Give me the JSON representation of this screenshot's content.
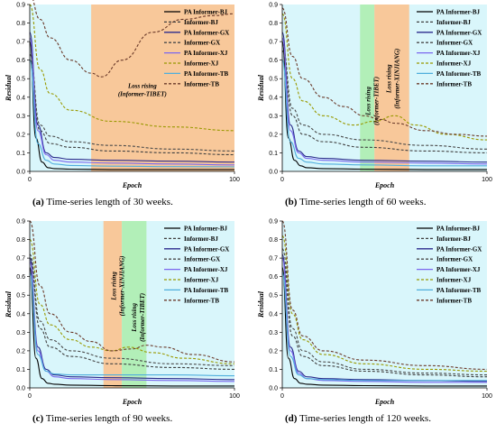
{
  "colors": {
    "PA Informer-BJ": "#000000",
    "Informer-BJ": "#404040",
    "PA Informer-GX": "#2b2b8c",
    "Informer-GX": "#4a4a4a",
    "PA Informer-XJ": "#7b68ee",
    "Informer-XJ": "#999900",
    "PA Informer-TB": "#4faedc",
    "Informer-TB": "#6b3a2a",
    "bg_cyan": "#d9f6fb",
    "band_orange": "#f8c89a",
    "band_green": "#b2efb8"
  },
  "chart_data": [
    {
      "type": "line",
      "caption_letter": "(a)",
      "caption_text": "Time-series length of 30 weeks.",
      "xlabel": "Epoch",
      "ylabel": "Residual",
      "xlim": [
        0,
        100
      ],
      "ylim": [
        0,
        0.9
      ],
      "xticks": [
        0,
        100
      ],
      "yticks": [
        0.0,
        0.1,
        0.2,
        0.3,
        0.4,
        0.5,
        0.6,
        0.7,
        0.8,
        0.9
      ],
      "legend_placement": "right",
      "bands": [
        {
          "x0": 30,
          "x1": 100,
          "color": "orange"
        }
      ],
      "annotations": [
        {
          "text": "Loss rising",
          "text2": "(Informer-TIBET)",
          "x": 55,
          "y": 0.45,
          "rotate": false
        }
      ],
      "series": [
        {
          "name": "PA Informer-BJ",
          "dashed": false,
          "x": [
            0,
            3,
            6,
            9,
            12,
            20,
            40,
            70,
            100
          ],
          "y": [
            0.7,
            0.18,
            0.05,
            0.02,
            0.015,
            0.012,
            0.01,
            0.01,
            0.01
          ]
        },
        {
          "name": "Informer-BJ",
          "dashed": true,
          "x": [
            0,
            5,
            10,
            20,
            40,
            70,
            100
          ],
          "y": [
            0.6,
            0.22,
            0.15,
            0.13,
            0.11,
            0.1,
            0.09
          ]
        },
        {
          "name": "PA Informer-GX",
          "dashed": false,
          "x": [
            0,
            4,
            8,
            12,
            20,
            40,
            70,
            100
          ],
          "y": [
            0.75,
            0.25,
            0.1,
            0.075,
            0.065,
            0.06,
            0.055,
            0.05
          ]
        },
        {
          "name": "Informer-GX",
          "dashed": true,
          "x": [
            0,
            5,
            10,
            20,
            40,
            70,
            100
          ],
          "y": [
            0.63,
            0.25,
            0.19,
            0.16,
            0.14,
            0.12,
            0.11
          ]
        },
        {
          "name": "PA Informer-XJ",
          "dashed": false,
          "x": [
            0,
            4,
            8,
            12,
            20,
            40,
            70,
            100
          ],
          "y": [
            0.72,
            0.22,
            0.09,
            0.06,
            0.05,
            0.045,
            0.04,
            0.035
          ]
        },
        {
          "name": "Informer-XJ",
          "dashed": true,
          "x": [
            0,
            5,
            10,
            20,
            40,
            70,
            100
          ],
          "y": [
            0.9,
            0.55,
            0.42,
            0.33,
            0.27,
            0.24,
            0.22
          ]
        },
        {
          "name": "PA Informer-TB",
          "dashed": false,
          "x": [
            0,
            4,
            8,
            12,
            20,
            40,
            70,
            100
          ],
          "y": [
            0.6,
            0.15,
            0.06,
            0.04,
            0.032,
            0.028,
            0.026,
            0.025
          ]
        },
        {
          "name": "Informer-TB",
          "dashed": true,
          "x": [
            0,
            5,
            10,
            20,
            30,
            35,
            45,
            60,
            75,
            90,
            100
          ],
          "y": [
            0.95,
            0.82,
            0.72,
            0.6,
            0.53,
            0.51,
            0.6,
            0.75,
            0.82,
            0.84,
            0.85
          ]
        }
      ]
    },
    {
      "type": "line",
      "caption_letter": "(b)",
      "caption_text": "Time-series length of 60 weeks.",
      "xlabel": "Epoch",
      "ylabel": "Residual",
      "xlim": [
        0,
        100
      ],
      "ylim": [
        0,
        0.9
      ],
      "xticks": [
        0,
        100
      ],
      "yticks": [
        0.0,
        0.1,
        0.2,
        0.3,
        0.4,
        0.5,
        0.6,
        0.7,
        0.8,
        0.9
      ],
      "legend_placement": "right",
      "bands": [
        {
          "x0": 38,
          "x1": 45,
          "color": "green"
        },
        {
          "x0": 45,
          "x1": 62,
          "color": "orange"
        }
      ],
      "annotations": [
        {
          "text": "Loss rising",
          "text2": "(Informer-TIBET)",
          "x": 43,
          "y": 0.38,
          "rotate": true
        },
        {
          "text": "Loss rising",
          "text2": "(Informer-XINJIANG)",
          "x": 53,
          "y": 0.5,
          "rotate": true
        }
      ],
      "series": [
        {
          "name": "PA Informer-BJ",
          "dashed": false,
          "x": [
            0,
            3,
            6,
            9,
            12,
            20,
            40,
            70,
            100
          ],
          "y": [
            0.7,
            0.18,
            0.06,
            0.03,
            0.02,
            0.015,
            0.012,
            0.01,
            0.01
          ]
        },
        {
          "name": "Informer-BJ",
          "dashed": true,
          "x": [
            0,
            5,
            10,
            20,
            40,
            70,
            100
          ],
          "y": [
            0.65,
            0.3,
            0.2,
            0.16,
            0.13,
            0.11,
            0.1
          ]
        },
        {
          "name": "PA Informer-GX",
          "dashed": false,
          "x": [
            0,
            4,
            8,
            12,
            20,
            40,
            70,
            100
          ],
          "y": [
            0.75,
            0.25,
            0.11,
            0.08,
            0.07,
            0.06,
            0.055,
            0.05
          ]
        },
        {
          "name": "Informer-GX",
          "dashed": true,
          "x": [
            0,
            5,
            10,
            20,
            40,
            70,
            100
          ],
          "y": [
            0.68,
            0.34,
            0.25,
            0.2,
            0.17,
            0.14,
            0.12
          ]
        },
        {
          "name": "PA Informer-XJ",
          "dashed": false,
          "x": [
            0,
            4,
            8,
            12,
            20,
            40,
            70,
            100
          ],
          "y": [
            0.72,
            0.22,
            0.1,
            0.07,
            0.06,
            0.05,
            0.045,
            0.04
          ]
        },
        {
          "name": "Informer-XJ",
          "dashed": true,
          "x": [
            0,
            5,
            10,
            20,
            35,
            45,
            55,
            65,
            80,
            100
          ],
          "y": [
            0.85,
            0.5,
            0.38,
            0.3,
            0.25,
            0.27,
            0.3,
            0.25,
            0.2,
            0.17
          ]
        },
        {
          "name": "PA Informer-TB",
          "dashed": false,
          "x": [
            0,
            4,
            8,
            12,
            20,
            40,
            70,
            100
          ],
          "y": [
            0.6,
            0.16,
            0.07,
            0.05,
            0.04,
            0.035,
            0.03,
            0.03
          ]
        },
        {
          "name": "Informer-TB",
          "dashed": true,
          "x": [
            0,
            5,
            10,
            20,
            30,
            40,
            48,
            55,
            70,
            85,
            100
          ],
          "y": [
            0.88,
            0.62,
            0.5,
            0.4,
            0.35,
            0.3,
            0.28,
            0.26,
            0.22,
            0.2,
            0.19
          ]
        }
      ]
    },
    {
      "type": "line",
      "caption_letter": "(c)",
      "caption_text": "Time-series length of 90 weeks.",
      "xlabel": "Epoch",
      "ylabel": "Residual",
      "xlim": [
        0,
        100
      ],
      "ylim": [
        0,
        0.9
      ],
      "xticks": [
        0,
        100
      ],
      "yticks": [
        0.0,
        0.1,
        0.2,
        0.3,
        0.4,
        0.5,
        0.6,
        0.7,
        0.8,
        0.9
      ],
      "legend_placement": "right",
      "bands": [
        {
          "x0": 36,
          "x1": 45,
          "color": "orange"
        },
        {
          "x0": 45,
          "x1": 57,
          "color": "green"
        }
      ],
      "annotations": [
        {
          "text": "Loss rising",
          "text2": "(Informer-XINJIANG)",
          "x": 42,
          "y": 0.55,
          "rotate": true
        },
        {
          "text": "Loss rising",
          "text2": "(Informer-TIBET)",
          "x": 52,
          "y": 0.38,
          "rotate": true
        }
      ],
      "series": [
        {
          "name": "PA Informer-BJ",
          "dashed": false,
          "x": [
            0,
            3,
            6,
            9,
            12,
            20,
            40,
            70,
            100
          ],
          "y": [
            0.65,
            0.16,
            0.05,
            0.025,
            0.02,
            0.015,
            0.012,
            0.01,
            0.01
          ]
        },
        {
          "name": "Informer-BJ",
          "dashed": true,
          "x": [
            0,
            5,
            10,
            20,
            40,
            70,
            100
          ],
          "y": [
            0.7,
            0.32,
            0.22,
            0.17,
            0.13,
            0.11,
            0.1
          ]
        },
        {
          "name": "PA Informer-GX",
          "dashed": false,
          "x": [
            0,
            4,
            8,
            12,
            20,
            40,
            70,
            100
          ],
          "y": [
            0.7,
            0.22,
            0.1,
            0.07,
            0.06,
            0.055,
            0.05,
            0.045
          ]
        },
        {
          "name": "Informer-GX",
          "dashed": true,
          "x": [
            0,
            5,
            10,
            20,
            40,
            70,
            100
          ],
          "y": [
            0.72,
            0.36,
            0.26,
            0.2,
            0.16,
            0.13,
            0.12
          ]
        },
        {
          "name": "PA Informer-XJ",
          "dashed": false,
          "x": [
            0,
            4,
            8,
            12,
            20,
            40,
            70,
            100
          ],
          "y": [
            0.68,
            0.2,
            0.09,
            0.06,
            0.05,
            0.045,
            0.04,
            0.035
          ]
        },
        {
          "name": "Informer-XJ",
          "dashed": true,
          "x": [
            0,
            5,
            10,
            20,
            30,
            40,
            48,
            60,
            75,
            100
          ],
          "y": [
            0.8,
            0.45,
            0.34,
            0.26,
            0.22,
            0.2,
            0.22,
            0.19,
            0.16,
            0.13
          ]
        },
        {
          "name": "PA Informer-TB",
          "dashed": false,
          "x": [
            0,
            4,
            8,
            12,
            20,
            40,
            70,
            100
          ],
          "y": [
            0.62,
            0.18,
            0.09,
            0.075,
            0.07,
            0.07,
            0.07,
            0.065
          ]
        },
        {
          "name": "Informer-TB",
          "dashed": true,
          "x": [
            0,
            5,
            10,
            20,
            30,
            40,
            50,
            57,
            65,
            80,
            100
          ],
          "y": [
            0.9,
            0.55,
            0.4,
            0.3,
            0.25,
            0.2,
            0.21,
            0.23,
            0.22,
            0.18,
            0.14
          ]
        }
      ]
    },
    {
      "type": "line",
      "caption_letter": "(d)",
      "caption_text": "Time-series length of 120 weeks.",
      "xlabel": "Epoch",
      "ylabel": "Residual",
      "xlim": [
        0,
        100
      ],
      "ylim": [
        0,
        0.9
      ],
      "xticks": [
        0,
        100
      ],
      "yticks": [
        0.0,
        0.1,
        0.2,
        0.3,
        0.4,
        0.5,
        0.6,
        0.7,
        0.8,
        0.9
      ],
      "legend_placement": "right",
      "bands": [],
      "annotations": [],
      "series": [
        {
          "name": "PA Informer-BJ",
          "dashed": false,
          "x": [
            0,
            3,
            6,
            9,
            12,
            20,
            40,
            70,
            100
          ],
          "y": [
            0.65,
            0.16,
            0.05,
            0.025,
            0.02,
            0.015,
            0.012,
            0.01,
            0.01
          ]
        },
        {
          "name": "Informer-BJ",
          "dashed": true,
          "x": [
            0,
            5,
            10,
            20,
            40,
            70,
            100
          ],
          "y": [
            0.7,
            0.28,
            0.17,
            0.12,
            0.09,
            0.07,
            0.06
          ]
        },
        {
          "name": "PA Informer-GX",
          "dashed": false,
          "x": [
            0,
            4,
            8,
            12,
            20,
            40,
            70,
            100
          ],
          "y": [
            0.72,
            0.22,
            0.09,
            0.06,
            0.05,
            0.045,
            0.04,
            0.035
          ]
        },
        {
          "name": "Informer-GX",
          "dashed": true,
          "x": [
            0,
            5,
            10,
            20,
            40,
            70,
            100
          ],
          "y": [
            0.75,
            0.32,
            0.2,
            0.14,
            0.1,
            0.08,
            0.07
          ]
        },
        {
          "name": "PA Informer-XJ",
          "dashed": false,
          "x": [
            0,
            4,
            8,
            12,
            20,
            40,
            70,
            100
          ],
          "y": [
            0.7,
            0.2,
            0.08,
            0.05,
            0.04,
            0.035,
            0.03,
            0.03
          ]
        },
        {
          "name": "Informer-XJ",
          "dashed": true,
          "x": [
            0,
            5,
            10,
            20,
            40,
            70,
            100
          ],
          "y": [
            0.82,
            0.4,
            0.26,
            0.18,
            0.13,
            0.1,
            0.09
          ]
        },
        {
          "name": "PA Informer-TB",
          "dashed": false,
          "x": [
            0,
            4,
            8,
            12,
            20,
            40,
            70,
            100
          ],
          "y": [
            0.62,
            0.17,
            0.07,
            0.05,
            0.045,
            0.04,
            0.04,
            0.04
          ]
        },
        {
          "name": "Informer-TB",
          "dashed": true,
          "x": [
            0,
            5,
            10,
            20,
            40,
            70,
            100
          ],
          "y": [
            0.9,
            0.42,
            0.28,
            0.2,
            0.15,
            0.12,
            0.1
          ]
        }
      ]
    }
  ]
}
